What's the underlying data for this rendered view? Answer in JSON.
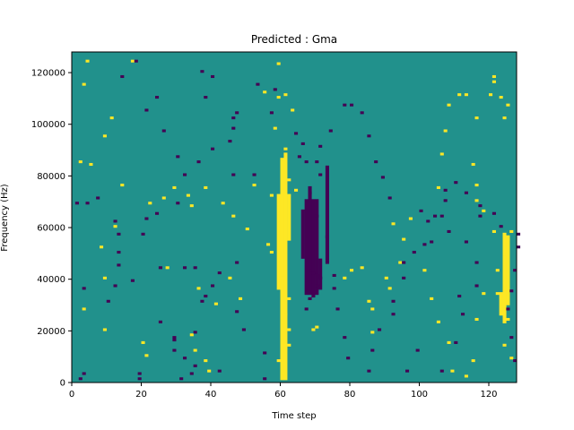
{
  "chart_data": {
    "type": "heatmap",
    "title": "Predicted : Gma",
    "xlabel": "Time step",
    "ylabel": "Frequency (Hz)",
    "xlim": [
      0,
      128
    ],
    "ylim": [
      0,
      128000
    ],
    "xticks": [
      0,
      20,
      40,
      60,
      80,
      100,
      120
    ],
    "xtick_labels": [
      "0",
      "20",
      "40",
      "60",
      "80",
      "100",
      "120"
    ],
    "yticks": [
      0,
      20000,
      40000,
      60000,
      80000,
      100000,
      120000
    ],
    "ytick_labels": [
      "0",
      "20000",
      "40000",
      "60000",
      "80000",
      "100000",
      "120000"
    ],
    "colors": {
      "background": "#21918c",
      "high": "#fde725",
      "low": "#440154"
    },
    "grid": false,
    "legend": "none",
    "cells": {
      "high": [
        [
          4,
          124
        ],
        [
          3,
          115
        ],
        [
          17,
          124
        ],
        [
          11,
          102
        ],
        [
          9,
          95
        ],
        [
          5,
          84
        ],
        [
          2,
          85
        ],
        [
          14,
          76
        ],
        [
          22,
          69
        ],
        [
          12,
          60
        ],
        [
          8,
          52
        ],
        [
          26,
          71
        ],
        [
          29,
          75
        ],
        [
          33,
          72
        ],
        [
          34,
          68
        ],
        [
          38,
          75
        ],
        [
          43,
          69
        ],
        [
          46,
          64
        ],
        [
          50,
          59
        ],
        [
          56,
          53
        ],
        [
          57,
          50
        ],
        [
          52,
          76
        ],
        [
          57,
          72
        ],
        [
          63,
          105
        ],
        [
          61,
          111
        ],
        [
          59,
          123
        ],
        [
          55,
          112
        ],
        [
          59,
          110
        ],
        [
          58,
          98
        ],
        [
          61,
          90
        ],
        [
          60,
          86
        ],
        [
          62,
          78
        ],
        [
          64,
          74
        ],
        [
          60,
          40
        ],
        [
          62,
          32
        ],
        [
          61,
          26
        ],
        [
          62,
          20
        ],
        [
          59,
          8
        ],
        [
          60,
          3
        ],
        [
          9,
          40
        ],
        [
          3,
          28
        ],
        [
          9,
          20
        ],
        [
          20,
          15
        ],
        [
          21,
          10
        ],
        [
          27,
          44
        ],
        [
          36,
          36
        ],
        [
          41,
          30
        ],
        [
          34,
          18
        ],
        [
          35,
          12
        ],
        [
          38,
          8
        ],
        [
          39,
          4
        ],
        [
          45,
          40
        ],
        [
          48,
          32
        ],
        [
          62,
          14
        ],
        [
          69,
          20
        ],
        [
          70,
          21
        ],
        [
          78,
          40
        ],
        [
          80,
          43
        ],
        [
          83,
          44
        ],
        [
          85,
          31
        ],
        [
          86,
          19
        ],
        [
          86,
          28
        ],
        [
          90,
          40
        ],
        [
          91,
          36
        ],
        [
          94,
          46
        ],
        [
          92,
          61
        ],
        [
          97,
          63
        ],
        [
          95,
          55
        ],
        [
          101,
          43
        ],
        [
          103,
          32
        ],
        [
          105,
          23
        ],
        [
          108,
          15
        ],
        [
          105,
          75
        ],
        [
          106,
          88
        ],
        [
          107,
          97
        ],
        [
          108,
          107
        ],
        [
          111,
          111
        ],
        [
          113,
          111
        ],
        [
          116,
          102
        ],
        [
          120,
          111
        ],
        [
          121,
          116
        ],
        [
          121,
          118
        ],
        [
          123,
          110
        ],
        [
          124,
          102
        ],
        [
          125,
          107
        ],
        [
          115,
          84
        ],
        [
          116,
          76
        ],
        [
          116,
          70
        ],
        [
          118,
          66
        ],
        [
          121,
          58
        ],
        [
          122,
          43
        ],
        [
          122,
          34
        ],
        [
          124,
          29
        ],
        [
          125,
          24
        ],
        [
          124,
          14
        ],
        [
          126,
          9
        ],
        [
          109,
          4
        ],
        [
          113,
          2
        ],
        [
          115,
          8
        ],
        [
          116,
          24
        ],
        [
          118,
          34
        ],
        [
          124,
          49
        ],
        [
          125,
          55
        ],
        [
          126,
          58
        ]
      ],
      "low": [
        [
          2,
          1
        ],
        [
          3,
          3
        ],
        [
          19,
          1
        ],
        [
          19,
          3
        ],
        [
          31,
          1
        ],
        [
          34,
          3
        ],
        [
          32,
          9
        ],
        [
          29,
          12
        ],
        [
          29,
          17
        ],
        [
          35,
          19
        ],
        [
          37,
          31
        ],
        [
          35,
          44
        ],
        [
          32,
          44
        ],
        [
          25,
          44
        ],
        [
          17,
          39
        ],
        [
          12,
          37
        ],
        [
          10,
          31
        ],
        [
          3,
          36
        ],
        [
          1,
          69
        ],
        [
          4,
          69
        ],
        [
          7,
          71
        ],
        [
          12,
          62
        ],
        [
          13,
          57
        ],
        [
          13,
          50
        ],
        [
          13,
          45
        ],
        [
          20,
          57
        ],
        [
          21,
          63
        ],
        [
          24,
          65
        ],
        [
          30,
          69
        ],
        [
          32,
          80
        ],
        [
          30,
          87
        ],
        [
          26,
          97
        ],
        [
          21,
          105
        ],
        [
          24,
          110
        ],
        [
          14,
          118
        ],
        [
          18,
          124
        ],
        [
          37,
          120
        ],
        [
          40,
          118
        ],
        [
          38,
          110
        ],
        [
          47,
          104
        ],
        [
          46,
          98
        ],
        [
          53,
          115
        ],
        [
          58,
          113
        ],
        [
          57,
          104
        ],
        [
          64,
          96
        ],
        [
          66,
          92
        ],
        [
          70,
          85
        ],
        [
          71,
          80
        ],
        [
          68,
          73
        ],
        [
          70,
          64
        ],
        [
          73,
          56
        ],
        [
          73,
          46
        ],
        [
          75,
          41
        ],
        [
          75,
          36
        ],
        [
          76,
          28
        ],
        [
          78,
          17
        ],
        [
          79,
          9
        ],
        [
          85,
          4
        ],
        [
          86,
          12
        ],
        [
          88,
          20
        ],
        [
          92,
          26
        ],
        [
          92,
          31
        ],
        [
          95,
          40
        ],
        [
          95,
          46
        ],
        [
          98,
          50
        ],
        [
          101,
          53
        ],
        [
          103,
          54
        ],
        [
          104,
          64
        ],
        [
          107,
          70
        ],
        [
          107,
          74
        ],
        [
          110,
          77
        ],
        [
          113,
          73
        ],
        [
          117,
          68
        ],
        [
          117,
          64
        ],
        [
          121,
          65
        ],
        [
          123,
          60
        ],
        [
          128,
          57
        ],
        [
          128,
          52
        ],
        [
          127,
          43
        ],
        [
          126,
          35
        ],
        [
          125,
          28
        ],
        [
          126,
          17
        ],
        [
          127,
          8
        ],
        [
          96,
          4
        ],
        [
          99,
          12
        ],
        [
          106,
          4
        ],
        [
          110,
          15
        ],
        [
          112,
          26
        ],
        [
          111,
          33
        ],
        [
          116,
          37
        ],
        [
          116,
          46
        ],
        [
          113,
          54
        ],
        [
          108,
          58
        ],
        [
          106,
          64
        ],
        [
          102,
          62
        ],
        [
          100,
          66
        ],
        [
          91,
          71
        ],
        [
          89,
          79
        ],
        [
          87,
          85
        ],
        [
          85,
          95
        ],
        [
          83,
          104
        ],
        [
          80,
          107
        ],
        [
          78,
          107
        ],
        [
          74,
          97
        ],
        [
          71,
          91
        ],
        [
          65,
          87
        ],
        [
          67,
          85
        ],
        [
          46,
          102
        ],
        [
          45,
          93
        ],
        [
          40,
          90
        ],
        [
          36,
          85
        ],
        [
          46,
          80
        ],
        [
          52,
          80
        ],
        [
          47,
          46
        ],
        [
          42,
          42
        ],
        [
          40,
          37
        ],
        [
          38,
          33
        ],
        [
          25,
          23
        ],
        [
          29,
          16
        ],
        [
          35,
          6
        ],
        [
          55,
          11
        ],
        [
          55,
          1
        ],
        [
          47,
          27
        ],
        [
          49,
          20
        ],
        [
          42,
          4
        ],
        [
          68,
          43
        ],
        [
          69,
          42
        ],
        [
          70,
          41
        ],
        [
          71,
          40
        ],
        [
          70,
          37
        ],
        [
          68,
          32
        ],
        [
          67,
          28
        ],
        [
          69,
          33
        ]
      ]
    },
    "column_bands": {
      "high": [
        {
          "x": 60,
          "y0": 1,
          "y1": 85
        },
        {
          "x": 61,
          "y0": 1,
          "y1": 88
        },
        {
          "x": 59,
          "y0": 36,
          "y1": 72
        },
        {
          "x": 62,
          "y0": 55,
          "y1": 72
        },
        {
          "x": 124,
          "y0": 23,
          "y1": 57
        },
        {
          "x": 125,
          "y0": 30,
          "y1": 56
        },
        {
          "x": 123,
          "y0": 26,
          "y1": 34
        }
      ],
      "low": [
        {
          "x": 66,
          "y0": 48,
          "y1": 66
        },
        {
          "x": 67,
          "y0": 34,
          "y1": 70
        },
        {
          "x": 68,
          "y0": 34,
          "y1": 75
        },
        {
          "x": 69,
          "y0": 34,
          "y1": 70
        },
        {
          "x": 70,
          "y0": 34,
          "y1": 70
        },
        {
          "x": 71,
          "y0": 36,
          "y1": 47
        },
        {
          "x": 73,
          "y0": 47,
          "y1": 83
        }
      ]
    }
  }
}
